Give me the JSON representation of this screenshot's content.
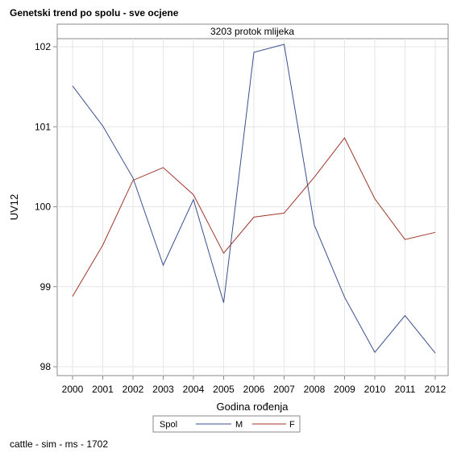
{
  "title": "Genetski trend po spolu - sve ocjene",
  "footnote": "cattle - sim - ms - 1702",
  "chart_data": {
    "type": "line",
    "panel_label": "3203 protok mlijeka",
    "xlabel": "Godina rođenja",
    "ylabel": "UV12",
    "categories": [
      "2000",
      "2001",
      "2002",
      "2003",
      "2004",
      "2005",
      "2006",
      "2007",
      "2008",
      "2009",
      "2010",
      "2011",
      "2012"
    ],
    "yticks": [
      98,
      99,
      100,
      101,
      102
    ],
    "ylim": [
      97.93,
      102.1
    ],
    "grid": true,
    "legend_title": "Spol",
    "legend_position": "bottom",
    "series": [
      {
        "name": "M",
        "color": "#3b4f8f",
        "values": [
          101.51,
          101.01,
          100.36,
          99.27,
          100.09,
          98.8,
          101.93,
          102.03,
          99.77,
          98.87,
          98.18,
          98.64,
          98.17
        ]
      },
      {
        "name": "F",
        "color": "#a0362a",
        "values": [
          98.88,
          99.52,
          100.33,
          100.49,
          100.15,
          99.42,
          99.87,
          99.92,
          100.37,
          100.86,
          100.1,
          99.59,
          99.68
        ]
      }
    ]
  }
}
